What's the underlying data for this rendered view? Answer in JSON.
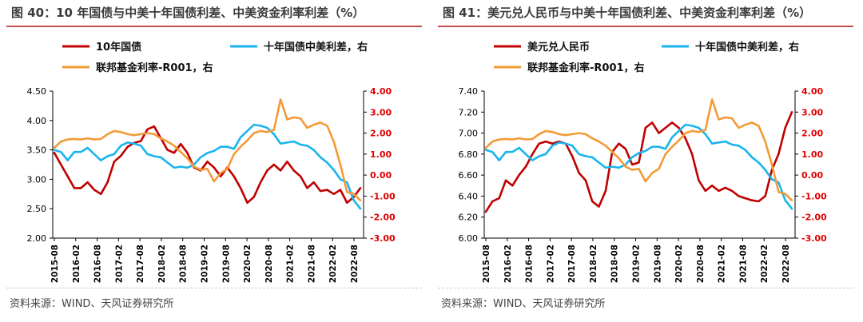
{
  "colors": {
    "red": "#c00000",
    "blue": "#19b4ee",
    "orange": "#f39a36",
    "title_rule": "#c0504d",
    "axis_right": "#e00000"
  },
  "chart_data": [
    {
      "type": "line",
      "title": "图 40：10 年国债与中美十年国债利差、中美资金利率利差（%）",
      "source": "资料来源：WIND、天风证券研究所",
      "x_labels": [
        "2015-08",
        "2016-02",
        "2016-08",
        "2017-02",
        "2017-08",
        "2018-02",
        "2018-08",
        "2019-02",
        "2019-08",
        "2020-02",
        "2020-08",
        "2021-02",
        "2021-08",
        "2022-02",
        "2022-08"
      ],
      "y_left": {
        "min": 2.0,
        "max": 4.5,
        "ticks": [
          "2.00",
          "2.50",
          "3.00",
          "3.50",
          "4.00",
          "4.50"
        ]
      },
      "y_right": {
        "min": -3.0,
        "max": 4.0,
        "ticks": [
          "-3.00",
          "-2.00",
          "-1.00",
          "0.00",
          "1.00",
          "2.00",
          "3.00",
          "4.00"
        ]
      },
      "legend": [
        "10年国债",
        "十年国债中美利差，右",
        "联邦基金利率-R001，右"
      ],
      "series": [
        {
          "name": "10年国债",
          "axis": "left",
          "color": "#c00000",
          "values": [
            3.45,
            3.25,
            3.05,
            2.85,
            2.85,
            2.95,
            2.82,
            2.75,
            2.95,
            3.3,
            3.4,
            3.55,
            3.62,
            3.65,
            3.85,
            3.9,
            3.7,
            3.5,
            3.45,
            3.6,
            3.45,
            3.2,
            3.15,
            3.3,
            3.2,
            3.05,
            3.2,
            3.05,
            2.85,
            2.6,
            2.7,
            2.95,
            3.15,
            3.25,
            3.15,
            3.3,
            3.15,
            3.05,
            2.85,
            2.95,
            2.8,
            2.82,
            2.75,
            2.82,
            2.6,
            2.7,
            2.85
          ]
        },
        {
          "name": "十年国债中美利差，右",
          "axis": "right",
          "color": "#19b4ee",
          "values": [
            1.2,
            1.1,
            0.7,
            1.1,
            1.1,
            1.3,
            1.0,
            0.7,
            0.9,
            1.0,
            1.4,
            1.55,
            1.5,
            1.4,
            1.0,
            0.9,
            0.85,
            0.6,
            0.35,
            0.4,
            0.35,
            0.5,
            0.85,
            1.05,
            1.15,
            1.35,
            1.35,
            1.25,
            1.8,
            2.1,
            2.4,
            2.35,
            2.25,
            1.95,
            1.5,
            1.55,
            1.6,
            1.45,
            1.4,
            1.2,
            0.85,
            0.6,
            0.25,
            -0.2,
            -0.35,
            -1.2,
            -1.6
          ]
        },
        {
          "name": "联邦基金利率-R001，右",
          "axis": "right",
          "color": "#f39a36",
          "values": [
            1.3,
            1.6,
            1.7,
            1.72,
            1.7,
            1.75,
            1.7,
            1.72,
            1.95,
            2.1,
            2.05,
            1.95,
            1.9,
            1.95,
            2.0,
            1.95,
            1.75,
            1.6,
            1.4,
            1.1,
            0.8,
            0.4,
            0.25,
            0.3,
            -0.3,
            0.1,
            0.3,
            1.0,
            1.35,
            1.65,
            2.0,
            2.1,
            2.05,
            2.15,
            3.6,
            2.65,
            2.75,
            2.7,
            2.25,
            2.4,
            2.5,
            2.35,
            1.6,
            0.5,
            -0.8,
            -0.9,
            -1.2
          ]
        }
      ]
    },
    {
      "type": "line",
      "title": "图 41：美元兑人民币与中美十年国债利差、中美资金利率利差（%）",
      "source": "资料来源：WIND、天风证券研究所",
      "x_labels": [
        "2015-08",
        "2016-02",
        "2016-08",
        "2017-02",
        "2017-08",
        "2018-02",
        "2018-08",
        "2019-02",
        "2019-08",
        "2020-02",
        "2020-08",
        "2021-02",
        "2021-08",
        "2022-02",
        "2022-08"
      ],
      "y_left": {
        "min": 6.0,
        "max": 7.4,
        "ticks": [
          "6.00",
          "6.20",
          "6.40",
          "6.60",
          "6.80",
          "7.00",
          "7.20",
          "7.40"
        ]
      },
      "y_right": {
        "min": -3.0,
        "max": 4.0,
        "ticks": [
          "-3.00",
          "-2.00",
          "-1.00",
          "0.00",
          "1.00",
          "2.00",
          "3.00",
          "4.00"
        ]
      },
      "legend": [
        "美元兑人民币",
        "十年国债中美利差，右",
        "联邦基金利率-R001，右"
      ],
      "series": [
        {
          "name": "美元兑人民币",
          "axis": "left",
          "color": "#c00000",
          "values": [
            6.25,
            6.35,
            6.38,
            6.55,
            6.5,
            6.6,
            6.68,
            6.8,
            6.9,
            6.92,
            6.9,
            6.92,
            6.9,
            6.78,
            6.62,
            6.55,
            6.35,
            6.3,
            6.45,
            6.82,
            6.9,
            6.85,
            6.7,
            6.72,
            7.05,
            7.1,
            7.0,
            7.05,
            7.1,
            7.05,
            6.95,
            6.8,
            6.55,
            6.45,
            6.5,
            6.45,
            6.48,
            6.45,
            6.4,
            6.38,
            6.36,
            6.35,
            6.4,
            6.65,
            6.8,
            7.05,
            7.2
          ]
        },
        {
          "name": "十年国债中美利差，右",
          "axis": "right",
          "color": "#19b4ee",
          "values": [
            1.2,
            1.1,
            0.7,
            1.1,
            1.1,
            1.3,
            1.0,
            0.7,
            0.9,
            1.0,
            1.4,
            1.55,
            1.5,
            1.4,
            1.0,
            0.9,
            0.85,
            0.6,
            0.35,
            0.4,
            0.35,
            0.5,
            0.85,
            1.05,
            1.15,
            1.35,
            1.35,
            1.25,
            1.8,
            2.1,
            2.4,
            2.35,
            2.25,
            1.95,
            1.5,
            1.55,
            1.6,
            1.45,
            1.4,
            1.2,
            0.85,
            0.6,
            0.25,
            -0.2,
            -0.35,
            -1.2,
            -1.6
          ]
        },
        {
          "name": "联邦基金利率-R001，右",
          "axis": "right",
          "color": "#f39a36",
          "values": [
            1.3,
            1.6,
            1.7,
            1.72,
            1.7,
            1.75,
            1.7,
            1.72,
            1.95,
            2.1,
            2.05,
            1.95,
            1.9,
            1.95,
            2.0,
            1.95,
            1.75,
            1.6,
            1.4,
            1.1,
            0.8,
            0.4,
            0.25,
            0.3,
            -0.3,
            0.1,
            0.3,
            1.0,
            1.35,
            1.65,
            2.0,
            2.1,
            2.05,
            2.15,
            3.6,
            2.65,
            2.75,
            2.7,
            2.25,
            2.4,
            2.5,
            2.35,
            1.6,
            0.5,
            -0.8,
            -0.9,
            -1.2
          ]
        }
      ]
    }
  ]
}
